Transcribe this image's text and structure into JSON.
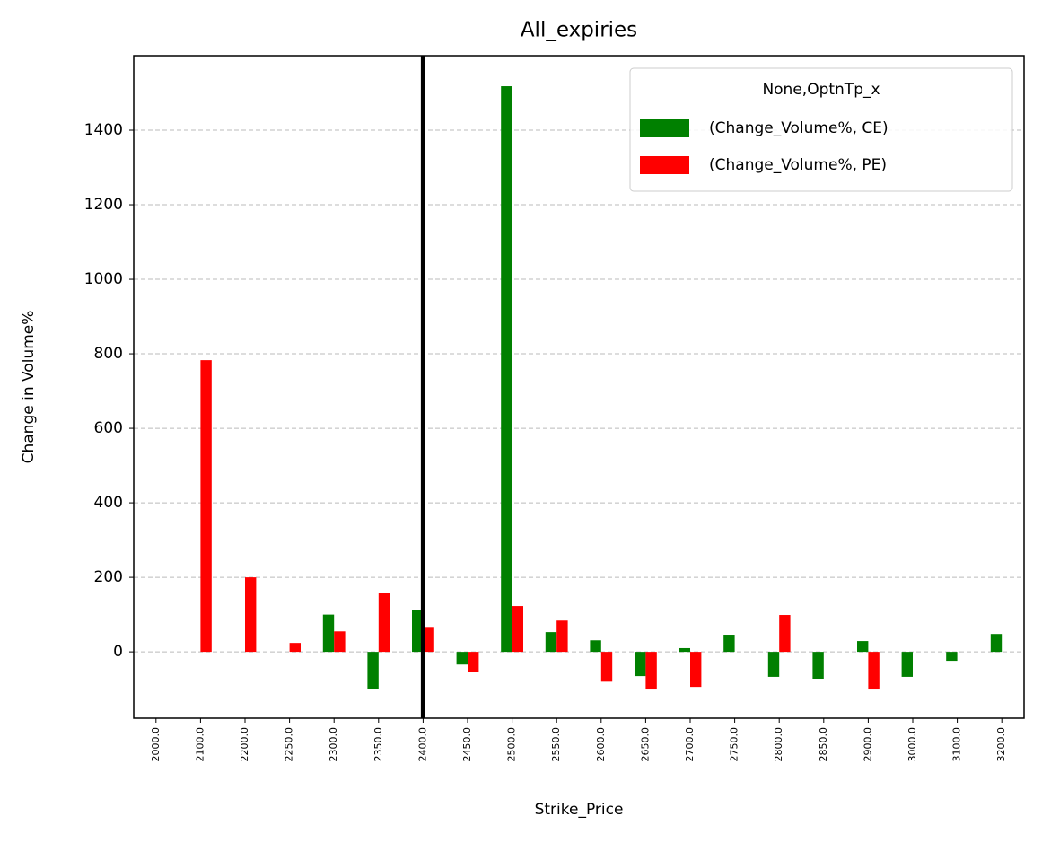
{
  "chart_data": {
    "type": "bar",
    "title": "All_expiries",
    "x_label": "Strike_Price",
    "y_label": "Change in Volume%",
    "categories": [
      "2000.0",
      "2100.0",
      "2200.0",
      "2250.0",
      "2300.0",
      "2350.0",
      "2400.0",
      "2450.0",
      "2500.0",
      "2550.0",
      "2600.0",
      "2650.0",
      "2700.0",
      "2750.0",
      "2800.0",
      "2850.0",
      "2900.0",
      "3000.0",
      "3100.0",
      "3200.0"
    ],
    "series": [
      {
        "name": "(Change_Volume%, CE)",
        "color": "green",
        "values": [
          null,
          null,
          null,
          null,
          100,
          -100,
          113,
          -34,
          1518,
          53,
          31,
          -65,
          10,
          46,
          -67,
          -72,
          29,
          -67,
          -24,
          48
        ]
      },
      {
        "name": "(Change_Volume%, PE)",
        "color": "red",
        "values": [
          null,
          783,
          200,
          24,
          55,
          157,
          67,
          -55,
          123,
          84,
          -80,
          -101,
          -94,
          null,
          99,
          null,
          -101,
          null,
          null,
          null
        ]
      }
    ],
    "legend_title": "None,OptnTp_x",
    "legend": "upper right",
    "ylim": [
      -178,
      1600
    ],
    "yticks": [
      0,
      200,
      400,
      600,
      800,
      1000,
      1200,
      1400
    ],
    "grid": true,
    "marker_line": {
      "category": "2400.0",
      "color": "black"
    }
  }
}
